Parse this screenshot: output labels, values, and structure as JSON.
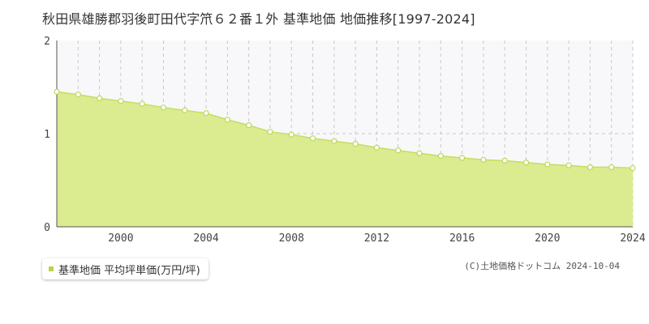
{
  "colors": {
    "area_fill": "#dbeb8f",
    "line": "#c3df61",
    "marker_fill": "#ffffff",
    "marker_stroke": "#bcd85a",
    "grid": "#c8c8c8",
    "plot_bg": "#f8f8fa",
    "axis": "#555555",
    "legend_marker": "#b6d64a"
  },
  "chart_data": {
    "type": "area",
    "title": "秋田県雄勝郡羽後町田代字笊６２番１外 基準地価 地価推移[1997-2024]",
    "xlabel": "",
    "ylabel": "",
    "xlim": [
      1997,
      2024
    ],
    "ylim": [
      0,
      2
    ],
    "x_ticks": [
      {
        "value": 2000,
        "label": "2000"
      },
      {
        "value": 2004,
        "label": "2004"
      },
      {
        "value": 2008,
        "label": "2008"
      },
      {
        "value": 2012,
        "label": "2012"
      },
      {
        "value": 2016,
        "label": "2016"
      },
      {
        "value": 2020,
        "label": "2020"
      },
      {
        "value": 2024,
        "label": "2024"
      }
    ],
    "y_ticks": [
      {
        "value": 0,
        "label": "0"
      },
      {
        "value": 1,
        "label": "1"
      },
      {
        "value": 2,
        "label": "2"
      }
    ],
    "grid": true,
    "legend_position": "bottom-left",
    "series": [
      {
        "name": "基準地価 平均坪単価(万円/坪)",
        "x": [
          1997,
          1998,
          1999,
          2000,
          2001,
          2002,
          2003,
          2004,
          2005,
          2006,
          2007,
          2008,
          2009,
          2010,
          2011,
          2012,
          2013,
          2014,
          2015,
          2016,
          2017,
          2018,
          2019,
          2020,
          2021,
          2022,
          2023,
          2024
        ],
        "values": [
          1.45,
          1.42,
          1.38,
          1.35,
          1.32,
          1.28,
          1.25,
          1.22,
          1.15,
          1.09,
          1.02,
          0.99,
          0.95,
          0.92,
          0.89,
          0.85,
          0.82,
          0.79,
          0.76,
          0.74,
          0.72,
          0.71,
          0.69,
          0.67,
          0.66,
          0.64,
          0.64,
          0.63
        ]
      }
    ]
  },
  "legend": {
    "label": "基準地価 平均坪単価(万円/坪)",
    "icon": "square-marker-icon"
  },
  "copyright": "(C)土地価格ドットコム 2024-10-04"
}
